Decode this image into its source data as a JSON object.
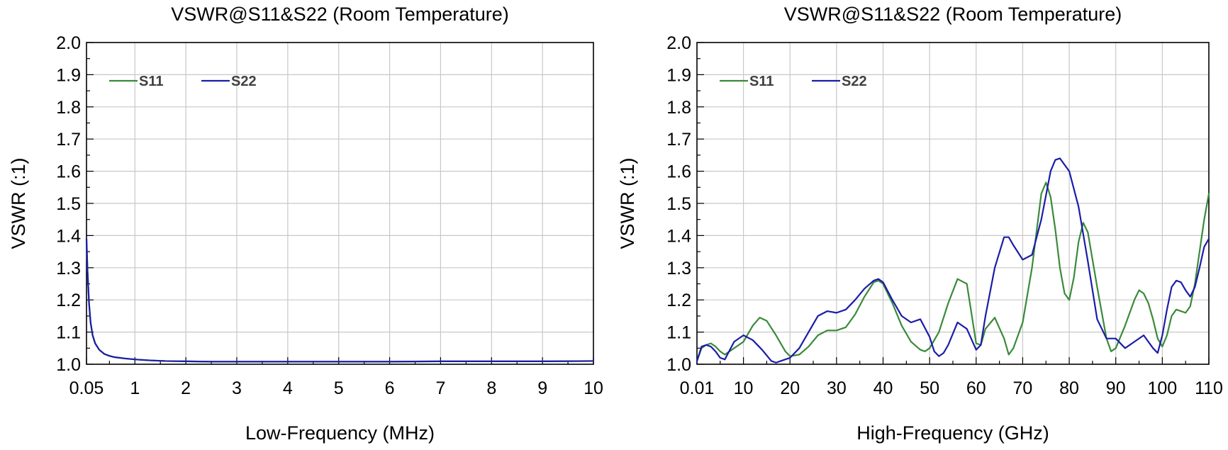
{
  "chart_data": [
    {
      "type": "line",
      "title": "VSWR@S11&S22 (Room Temperature)",
      "xlabel": "Low-Frequency (MHz)",
      "ylabel": "VSWR (:1)",
      "xlim": [
        0.05,
        10
      ],
      "ylim": [
        1.0,
        2.0
      ],
      "x_ticks": [
        0.05,
        1,
        2,
        3,
        4,
        5,
        6,
        7,
        8,
        9,
        10
      ],
      "x_tick_labels": [
        "0.05",
        "1",
        "2",
        "3",
        "4",
        "5",
        "6",
        "7",
        "8",
        "9",
        "10"
      ],
      "x_minor_ticks": [
        0.5,
        1.5,
        2.5,
        3.5,
        4.5,
        5.5,
        6.5,
        7.5,
        8.5,
        9.5
      ],
      "y_ticks": [
        1.0,
        1.1,
        1.2,
        1.3,
        1.4,
        1.5,
        1.6,
        1.7,
        1.8,
        1.9,
        2.0
      ],
      "y_tick_labels": [
        "1.0",
        "1.1",
        "1.2",
        "1.3",
        "1.4",
        "1.5",
        "1.6",
        "1.7",
        "1.8",
        "1.9",
        "2.0"
      ],
      "grid": true,
      "legend_position": "top-left",
      "series": [
        {
          "name": "S11",
          "color": "#3a8a3a",
          "x": [
            0.05,
            0.07,
            0.1,
            0.13,
            0.17,
            0.22,
            0.3,
            0.4,
            0.5,
            0.6,
            0.8,
            1.0,
            1.3,
            1.6,
            2.0,
            2.5,
            3,
            4,
            5,
            6,
            7,
            8,
            9,
            10
          ],
          "y": [
            1.39,
            1.29,
            1.19,
            1.13,
            1.09,
            1.065,
            1.045,
            1.032,
            1.026,
            1.022,
            1.018,
            1.015,
            1.012,
            1.01,
            1.009,
            1.008,
            1.008,
            1.008,
            1.008,
            1.008,
            1.009,
            1.009,
            1.009,
            1.01
          ]
        },
        {
          "name": "S22",
          "color": "#1c1ca8",
          "x": [
            0.05,
            0.07,
            0.1,
            0.13,
            0.17,
            0.22,
            0.3,
            0.4,
            0.5,
            0.6,
            0.8,
            1.0,
            1.3,
            1.6,
            2.0,
            2.5,
            3,
            4,
            5,
            6,
            7,
            8,
            9,
            10
          ],
          "y": [
            1.39,
            1.29,
            1.19,
            1.13,
            1.09,
            1.065,
            1.045,
            1.032,
            1.026,
            1.022,
            1.018,
            1.015,
            1.012,
            1.01,
            1.009,
            1.008,
            1.008,
            1.008,
            1.008,
            1.008,
            1.009,
            1.009,
            1.009,
            1.01
          ]
        }
      ]
    },
    {
      "type": "line",
      "title": "VSWR@S11&S22 (Room Temperature)",
      "xlabel": "High-Frequency (GHz)",
      "ylabel": "VSWR (:1)",
      "xlim": [
        0.01,
        110
      ],
      "ylim": [
        1.0,
        2.0
      ],
      "x_ticks": [
        0.01,
        10,
        20,
        30,
        40,
        50,
        60,
        70,
        80,
        90,
        100,
        110
      ],
      "x_tick_labels": [
        "0.01",
        "10",
        "20",
        "30",
        "40",
        "50",
        "60",
        "70",
        "80",
        "90",
        "100",
        "110"
      ],
      "x_minor_ticks": [
        5,
        15,
        25,
        35,
        45,
        55,
        65,
        75,
        85,
        95,
        105
      ],
      "y_ticks": [
        1.0,
        1.1,
        1.2,
        1.3,
        1.4,
        1.5,
        1.6,
        1.7,
        1.8,
        1.9,
        2.0
      ],
      "y_tick_labels": [
        "1.0",
        "1.1",
        "1.2",
        "1.3",
        "1.4",
        "1.5",
        "1.6",
        "1.7",
        "1.8",
        "1.9",
        "2.0"
      ],
      "grid": true,
      "legend_position": "top-left",
      "series": [
        {
          "name": "S11",
          "color": "#3a8a3a",
          "x": [
            0.01,
            1,
            2,
            3,
            4,
            5,
            6,
            8,
            10,
            12,
            13.5,
            15,
            17,
            19,
            20,
            22,
            24,
            26,
            28,
            30,
            32,
            34,
            36,
            38,
            39,
            40,
            42,
            44,
            46,
            48,
            49,
            50,
            52,
            54,
            56,
            58,
            60,
            61,
            62,
            64,
            66,
            67,
            68,
            70,
            72,
            74,
            75,
            76,
            77,
            78,
            79,
            80,
            81,
            82,
            83,
            84,
            86,
            88,
            89,
            90,
            92,
            94,
            95,
            96,
            97,
            98,
            99,
            100,
            101,
            102,
            103,
            104,
            105,
            106,
            107,
            108,
            109,
            110
          ],
          "y": [
            1.01,
            1.05,
            1.06,
            1.065,
            1.055,
            1.04,
            1.03,
            1.05,
            1.07,
            1.12,
            1.145,
            1.135,
            1.09,
            1.04,
            1.025,
            1.03,
            1.055,
            1.09,
            1.105,
            1.105,
            1.115,
            1.155,
            1.21,
            1.255,
            1.26,
            1.25,
            1.19,
            1.12,
            1.07,
            1.045,
            1.04,
            1.05,
            1.1,
            1.19,
            1.265,
            1.25,
            1.065,
            1.06,
            1.11,
            1.145,
            1.08,
            1.03,
            1.05,
            1.13,
            1.3,
            1.53,
            1.565,
            1.52,
            1.42,
            1.3,
            1.22,
            1.2,
            1.27,
            1.38,
            1.44,
            1.41,
            1.24,
            1.08,
            1.04,
            1.05,
            1.12,
            1.2,
            1.23,
            1.22,
            1.19,
            1.14,
            1.08,
            1.055,
            1.09,
            1.15,
            1.17,
            1.165,
            1.16,
            1.18,
            1.25,
            1.35,
            1.45,
            1.53
          ]
        },
        {
          "name": "S22",
          "color": "#1c1ca8",
          "x": [
            0.01,
            1,
            2,
            3,
            4,
            5,
            6,
            8,
            10,
            12,
            14,
            16,
            17,
            18,
            20,
            22,
            24,
            26,
            28,
            30,
            32,
            34,
            36,
            38,
            39,
            40,
            42,
            44,
            46,
            48,
            50,
            51,
            52,
            53,
            54,
            56,
            58,
            60,
            61,
            62,
            64,
            66,
            67,
            68,
            70,
            72,
            74,
            76,
            77,
            78,
            80,
            82,
            84,
            86,
            88,
            90,
            92,
            94,
            96,
            98,
            99,
            100,
            101,
            102,
            103,
            104,
            105,
            106,
            107,
            108,
            109,
            110
          ],
          "y": [
            1.01,
            1.055,
            1.06,
            1.055,
            1.04,
            1.02,
            1.015,
            1.07,
            1.09,
            1.075,
            1.045,
            1.01,
            1.005,
            1.01,
            1.02,
            1.05,
            1.1,
            1.15,
            1.165,
            1.16,
            1.17,
            1.2,
            1.235,
            1.26,
            1.265,
            1.255,
            1.2,
            1.15,
            1.13,
            1.14,
            1.085,
            1.04,
            1.025,
            1.035,
            1.06,
            1.13,
            1.11,
            1.045,
            1.06,
            1.15,
            1.3,
            1.395,
            1.395,
            1.37,
            1.325,
            1.34,
            1.45,
            1.6,
            1.635,
            1.64,
            1.6,
            1.49,
            1.32,
            1.14,
            1.08,
            1.08,
            1.05,
            1.07,
            1.09,
            1.05,
            1.035,
            1.09,
            1.17,
            1.24,
            1.26,
            1.255,
            1.23,
            1.21,
            1.24,
            1.3,
            1.365,
            1.39
          ]
        }
      ]
    }
  ]
}
